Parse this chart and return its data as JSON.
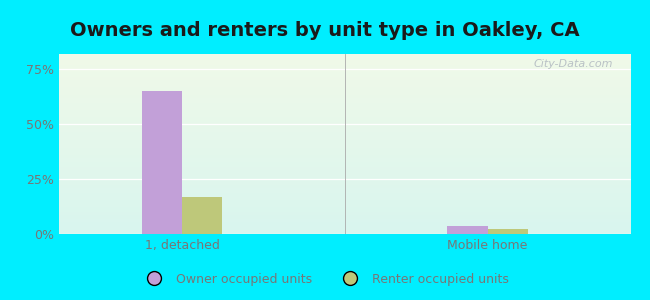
{
  "title": "Owners and renters by unit type in Oakley, CA",
  "categories": [
    "1, detached",
    "Mobile home"
  ],
  "owner_values": [
    65.0,
    3.5
  ],
  "renter_values": [
    17.0,
    2.5
  ],
  "owner_color": "#c2a0d8",
  "renter_color": "#bec87a",
  "background_color_top": "#f0f9e8",
  "background_color_bottom": "#d8f5ee",
  "figure_bg": "#00eeff",
  "yticks": [
    0,
    25,
    50,
    75
  ],
  "ytick_labels": [
    "0%",
    "25%",
    "50%",
    "75%"
  ],
  "ylim": [
    0,
    82
  ],
  "legend_labels": [
    "Owner occupied units",
    "Renter occupied units"
  ],
  "watermark": "City-Data.com",
  "title_fontsize": 14,
  "axis_fontsize": 9,
  "legend_fontsize": 9,
  "grid_color": "#ffffff",
  "tick_color": "#777777",
  "title_color": "#1a1a1a",
  "separator_x": 3.0,
  "xlim": [
    0,
    6
  ],
  "x_group1": 1.3,
  "x_group2": 4.5,
  "bar_width": 0.42
}
